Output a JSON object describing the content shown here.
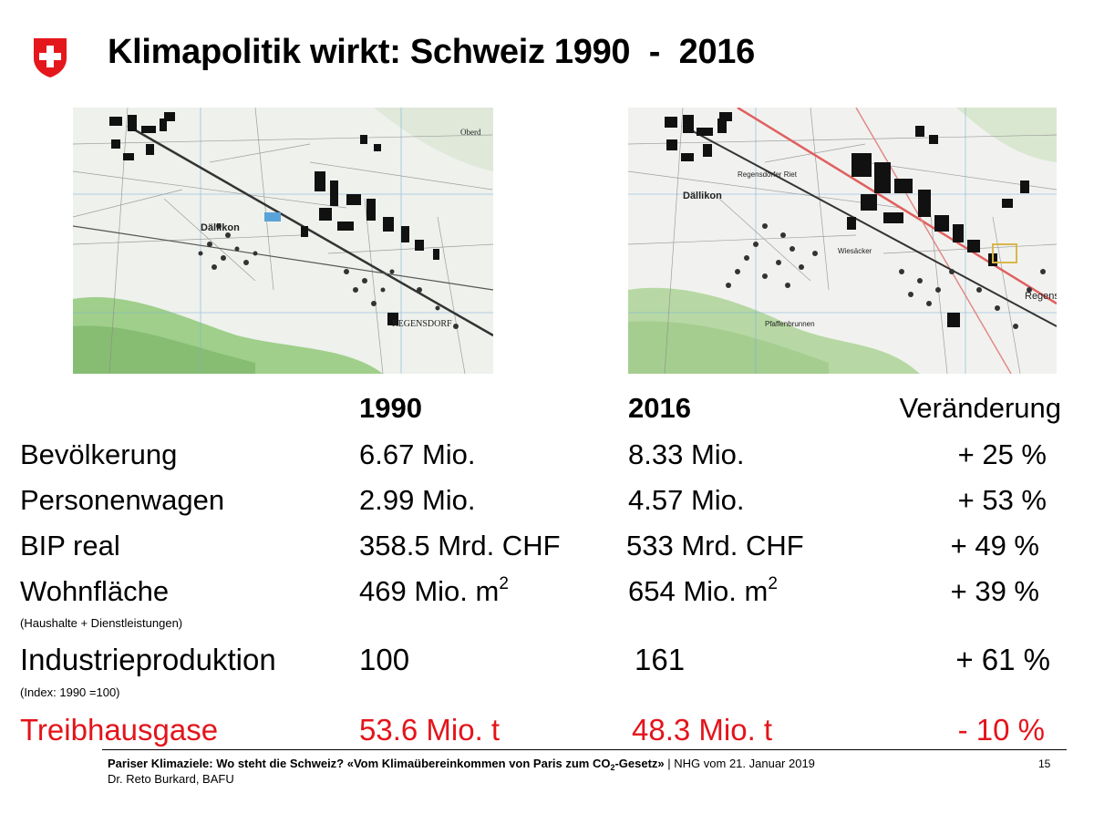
{
  "header": {
    "title": "Klimapolitik wirkt: Schweiz 1990  -  2016"
  },
  "maps": {
    "left_labels": [
      "Dällikon",
      "REGENSDORF",
      "Oberd"
    ],
    "right_labels": [
      "Dällikon",
      "Regensdorfer Riet",
      "Regensd",
      "Wiesäcker",
      "Pfaffenbrunnen"
    ]
  },
  "table": {
    "columns": [
      "1990",
      "2016",
      "Veränderung"
    ],
    "rows": [
      {
        "label": "Bevölkerung",
        "y1990": "6.67 Mio.",
        "y2016": "8.33 Mio.",
        "change": "+ 25 %"
      },
      {
        "label": "Personenwagen",
        "y1990": "2.99 Mio.",
        "y2016": "4.57 Mio.",
        "change": "+ 53 %"
      },
      {
        "label": "BIP real",
        "y1990": "358.5 Mrd. CHF",
        "y2016": "533 Mrd. CHF",
        "change": "+ 49 %"
      },
      {
        "label": "Wohnfläche",
        "y1990": "469 Mio. m",
        "y2016": "654 Mio. m",
        "unit_sup": "2",
        "change": "+ 39 %",
        "note": "(Haushalte + Dienstleistungen)"
      },
      {
        "label": "Industrieproduktion",
        "y1990": "100",
        "y2016": "161",
        "change": "+ 61 %",
        "note": "(Index: 1990 =100)"
      },
      {
        "label": "Treibhausgase",
        "y1990": "53.6 Mio. t",
        "y2016": "48.3 Mio. t",
        "change": "- 10 %"
      }
    ]
  },
  "footer": {
    "event_title": "Pariser Klimaziele: Wo steht die Schweiz? «Vom Klimaübereinkommen von Paris zum CO",
    "sub2": "2",
    "event_title_end": "-Gesetz»",
    "event_info": " | NHG vom 21. Januar 2019",
    "author": "Dr. Reto Burkard, BAFU",
    "page_number": "15"
  },
  "colors": {
    "highlight_red": "#e3141b",
    "swiss_red": "#e4181c"
  }
}
